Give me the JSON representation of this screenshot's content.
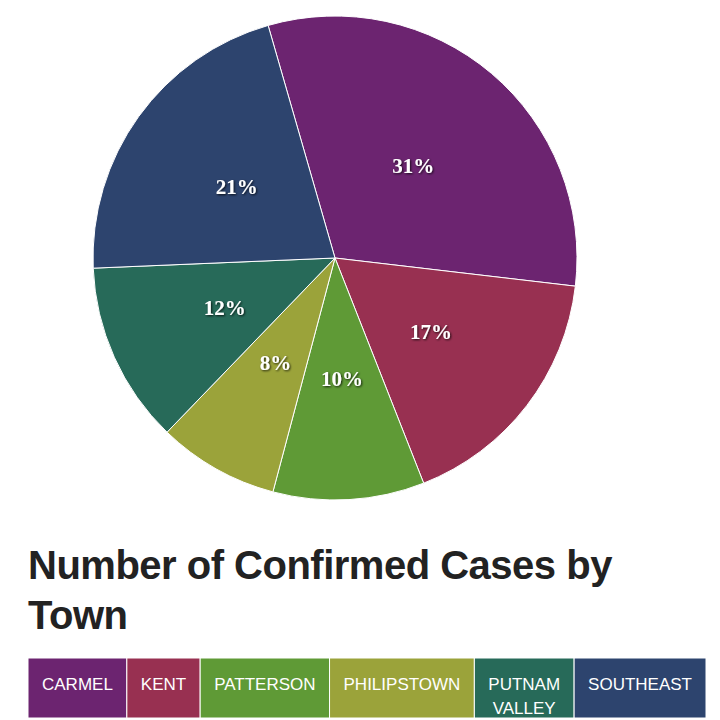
{
  "chart_data": {
    "type": "pie",
    "title": "Number of Confirmed Cases by Town",
    "categories": [
      "CARMEL",
      "KENT",
      "PATTERSON",
      "PHILIPSTOWN",
      "PUTNAM VALLEY",
      "SOUTHEAST"
    ],
    "values": [
      31,
      17,
      10,
      8,
      12,
      21
    ],
    "value_labels": [
      "31%",
      "17%",
      "10%",
      "8%",
      "12%",
      "21%"
    ],
    "colors": [
      "#6c2470",
      "#983051",
      "#5f9a36",
      "#9ba33a",
      "#276a59",
      "#2d446e"
    ],
    "data_labels": true,
    "legend": "bottom"
  }
}
